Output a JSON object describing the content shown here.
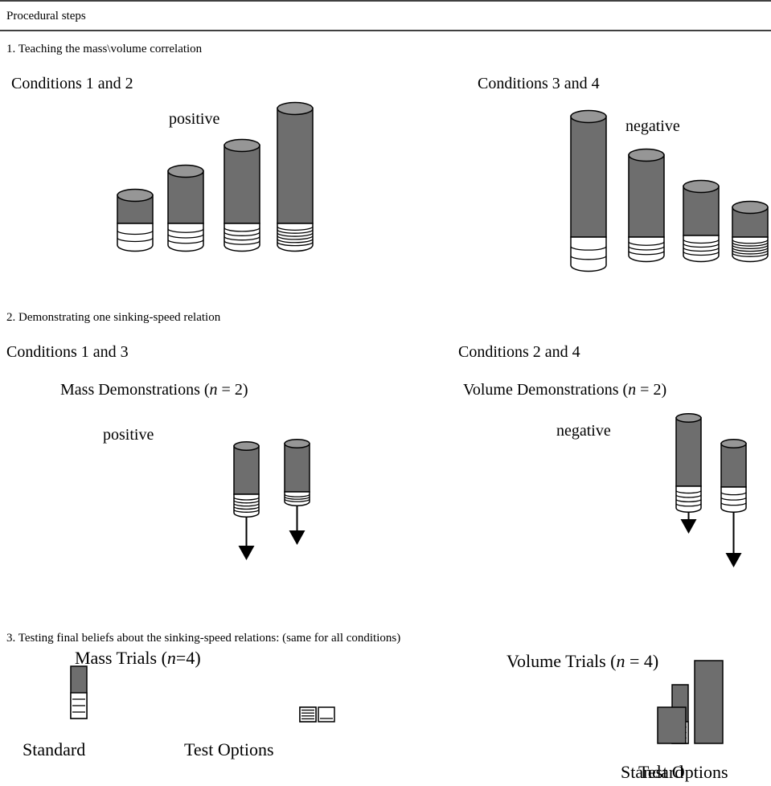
{
  "header": {
    "title": "Procedural steps"
  },
  "sections": [
    {
      "heading": "1. Teaching the mass\\volume correlation",
      "left": {
        "label": "Conditions 1 and 2",
        "relation": "positive"
      },
      "right": {
        "label": "Conditions 3 and 4",
        "relation": "negative"
      }
    },
    {
      "heading": "2. Demonstrating one sinking-speed relation",
      "left": {
        "label": "Conditions 1 and 3",
        "demo": {
          "before": "Mass Demonstrations (",
          "italic": "n",
          "after": " = 2)"
        },
        "relation": "positive"
      },
      "right": {
        "label": "Conditions 2 and 4",
        "demo": {
          "before": "Volume Demonstrations (",
          "italic": "n",
          "after": " = 2)"
        },
        "relation": "negative"
      }
    },
    {
      "heading": "3. Testing final beliefs about the sinking-speed relations: (same for all conditions)",
      "left": {
        "trials": {
          "before": "Mass Trials (",
          "italic": "n",
          "after": "=4)"
        },
        "standard": "Standard",
        "options": "Test Options"
      },
      "right": {
        "trials": {
          "before": "Volume Trials (",
          "italic": "n",
          "after": " = 4)"
        },
        "standard": "Standard",
        "options": "Test Options"
      }
    }
  ]
}
